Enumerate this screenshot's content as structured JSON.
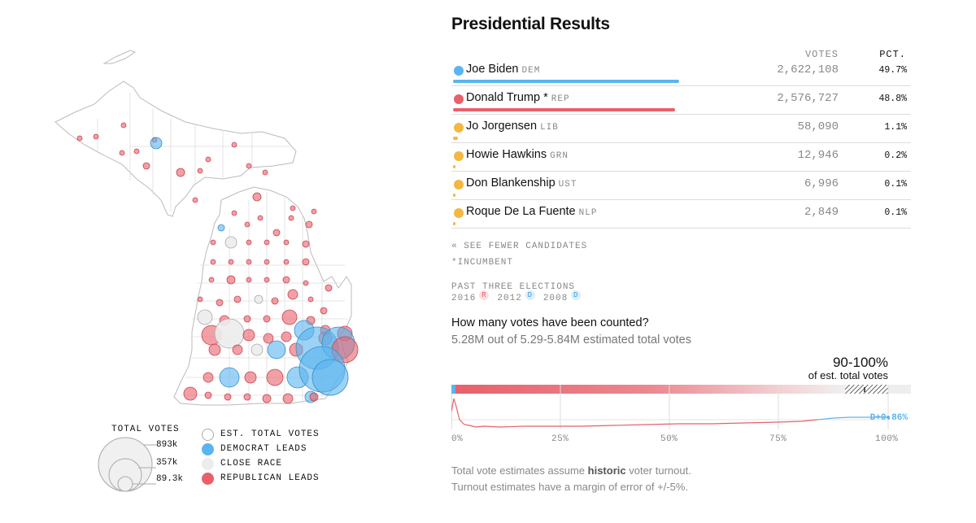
{
  "header": {
    "title": "Presidential Results",
    "votes_col": "VOTES",
    "pct_col": "PCT."
  },
  "colors": {
    "dem": "#5ab4ef",
    "rep": "#e8606b",
    "other": "#f2b842",
    "close": "#ececec"
  },
  "candidates": [
    {
      "name": "Joe Biden",
      "party": "DEM",
      "votes": "2,622,108",
      "pct": "49.7%",
      "color": "#5ab4ef",
      "bar_fraction": 0.497
    },
    {
      "name": "Donald Trump *",
      "party": "REP",
      "votes": "2,576,727",
      "pct": "48.8%",
      "color": "#e8606b",
      "bar_fraction": 0.488
    },
    {
      "name": "Jo Jorgensen",
      "party": "LIB",
      "votes": "58,090",
      "pct": "1.1%",
      "color": "#f2b842",
      "bar_fraction": 0.011
    },
    {
      "name": "Howie Hawkins",
      "party": "GRN",
      "votes": "12,946",
      "pct": "0.2%",
      "color": "#f2b842",
      "bar_fraction": 0.002
    },
    {
      "name": "Don Blankenship",
      "party": "UST",
      "votes": "6,996",
      "pct": "0.1%",
      "color": "#f2b842",
      "bar_fraction": 0.001
    },
    {
      "name": "Roque De La Fuente",
      "party": "NLP",
      "votes": "2,849",
      "pct": "0.1%",
      "color": "#f2b842",
      "bar_fraction": 0.001
    }
  ],
  "links": {
    "see_fewer": "« SEE FEWER CANDIDATES",
    "incumbent": "*INCUMBENT"
  },
  "past": {
    "title": "PAST THREE ELECTIONS",
    "items": [
      {
        "year": "2016",
        "party": "R"
      },
      {
        "year": "2012",
        "party": "D"
      },
      {
        "year": "2008",
        "party": "D"
      }
    ]
  },
  "count": {
    "question": "How many votes have been counted?",
    "summary": "5.28M out of 5.29-5.84M estimated total votes",
    "est_range": "90-100%",
    "est_label": "of est. total votes",
    "margin_label": "D+0.86%",
    "axis": [
      "0%",
      "25%",
      "50%",
      "75%",
      "100%"
    ]
  },
  "footnote": {
    "line1_pre": "Total vote estimates assume ",
    "line1_bold": "historic",
    "line1_post": " voter turnout.",
    "line2": "Turnout estimates have a margin of error of +/-5%."
  },
  "legend": {
    "title": "TOTAL VOTES",
    "sizes": [
      "893k",
      "357k",
      "89.3k"
    ],
    "items": [
      {
        "label": "EST. TOTAL VOTES",
        "key": "est"
      },
      {
        "label": "DEMOCRAT LEADS",
        "key": "dem"
      },
      {
        "label": "CLOSE RACE",
        "key": "close"
      },
      {
        "label": "REPUBLICAN LEADS",
        "key": "rep"
      }
    ]
  }
}
